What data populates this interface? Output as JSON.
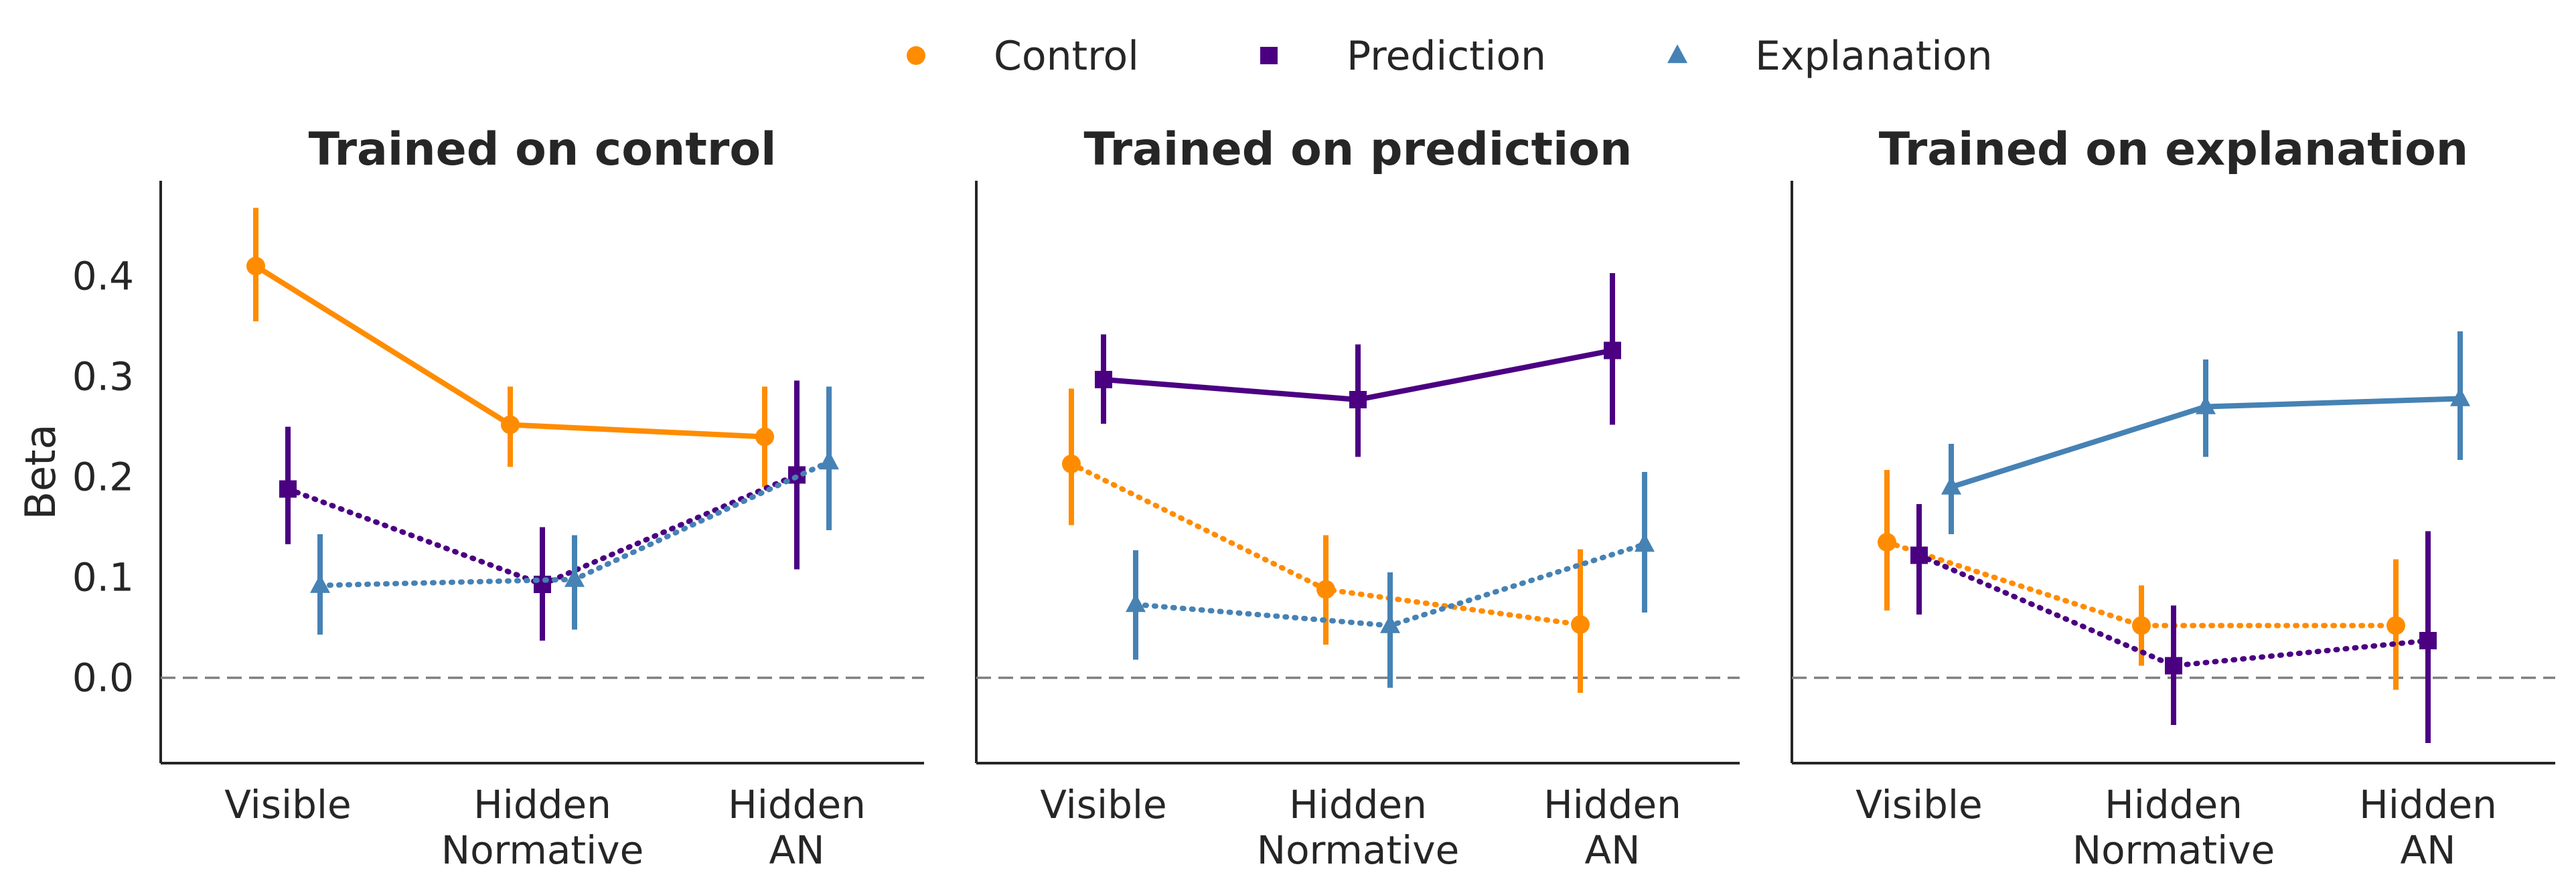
{
  "chart_data": {
    "type": "pointplot",
    "ylabel": "Beta",
    "ylim": [
      -0.085,
      0.495
    ],
    "yticks": [
      0.0,
      0.1,
      0.2,
      0.3,
      0.4
    ],
    "ytick_labels": [
      "0.0",
      "0.1",
      "0.2",
      "0.3",
      "0.4"
    ],
    "grid": false,
    "legend_position": "top-center",
    "categories": [
      [
        "Visible"
      ],
      [
        "Hidden",
        "Normative"
      ],
      [
        "Hidden",
        "AN"
      ]
    ],
    "series_styles": [
      {
        "name": "Control",
        "color": "#ff8c00",
        "marker": "circle"
      },
      {
        "name": "Prediction",
        "color": "#4b0082",
        "marker": "square"
      },
      {
        "name": "Explanation",
        "color": "#4682b4",
        "marker": "triangle"
      }
    ],
    "panels": [
      {
        "title": "Trained on control",
        "series": [
          {
            "name": "Control",
            "line": "solid",
            "values": [
              0.41,
              0.252,
              0.24
            ],
            "ci_low": [
              0.355,
              0.21,
              0.19
            ],
            "ci_high": [
              0.468,
              0.29,
              0.29
            ]
          },
          {
            "name": "Prediction",
            "line": "dotted",
            "values": [
              0.188,
              0.093,
              0.202
            ],
            "ci_low": [
              0.133,
              0.037,
              0.108
            ],
            "ci_high": [
              0.25,
              0.15,
              0.296
            ]
          },
          {
            "name": "Explanation",
            "line": "dotted",
            "values": [
              0.092,
              0.098,
              0.215
            ],
            "ci_low": [
              0.043,
              0.048,
              0.147
            ],
            "ci_high": [
              0.143,
              0.142,
              0.29
            ]
          }
        ]
      },
      {
        "title": "Trained on prediction",
        "series": [
          {
            "name": "Control",
            "line": "dotted",
            "values": [
              0.213,
              0.088,
              0.053
            ],
            "ci_low": [
              0.152,
              0.033,
              -0.015
            ],
            "ci_high": [
              0.288,
              0.142,
              0.128
            ]
          },
          {
            "name": "Prediction",
            "line": "solid",
            "values": [
              0.297,
              0.277,
              0.326
            ],
            "ci_low": [
              0.253,
              0.22,
              0.252
            ],
            "ci_high": [
              0.342,
              0.332,
              0.403
            ]
          },
          {
            "name": "Explanation",
            "line": "dotted",
            "values": [
              0.073,
              0.052,
              0.133
            ],
            "ci_low": [
              0.018,
              -0.01,
              0.065
            ],
            "ci_high": [
              0.127,
              0.105,
              0.205
            ]
          }
        ]
      },
      {
        "title": "Trained on explanation",
        "series": [
          {
            "name": "Control",
            "line": "dotted",
            "values": [
              0.135,
              0.052,
              0.052
            ],
            "ci_low": [
              0.067,
              0.012,
              -0.012
            ],
            "ci_high": [
              0.207,
              0.092,
              0.118
            ]
          },
          {
            "name": "Prediction",
            "line": "dotted",
            "values": [
              0.122,
              0.012,
              0.037
            ],
            "ci_low": [
              0.063,
              -0.047,
              -0.065
            ],
            "ci_high": [
              0.173,
              0.072,
              0.146
            ]
          },
          {
            "name": "Explanation",
            "line": "solid",
            "values": [
              0.19,
              0.27,
              0.278
            ],
            "ci_low": [
              0.143,
              0.22,
              0.217
            ],
            "ci_high": [
              0.233,
              0.317,
              0.345
            ]
          }
        ]
      }
    ]
  }
}
